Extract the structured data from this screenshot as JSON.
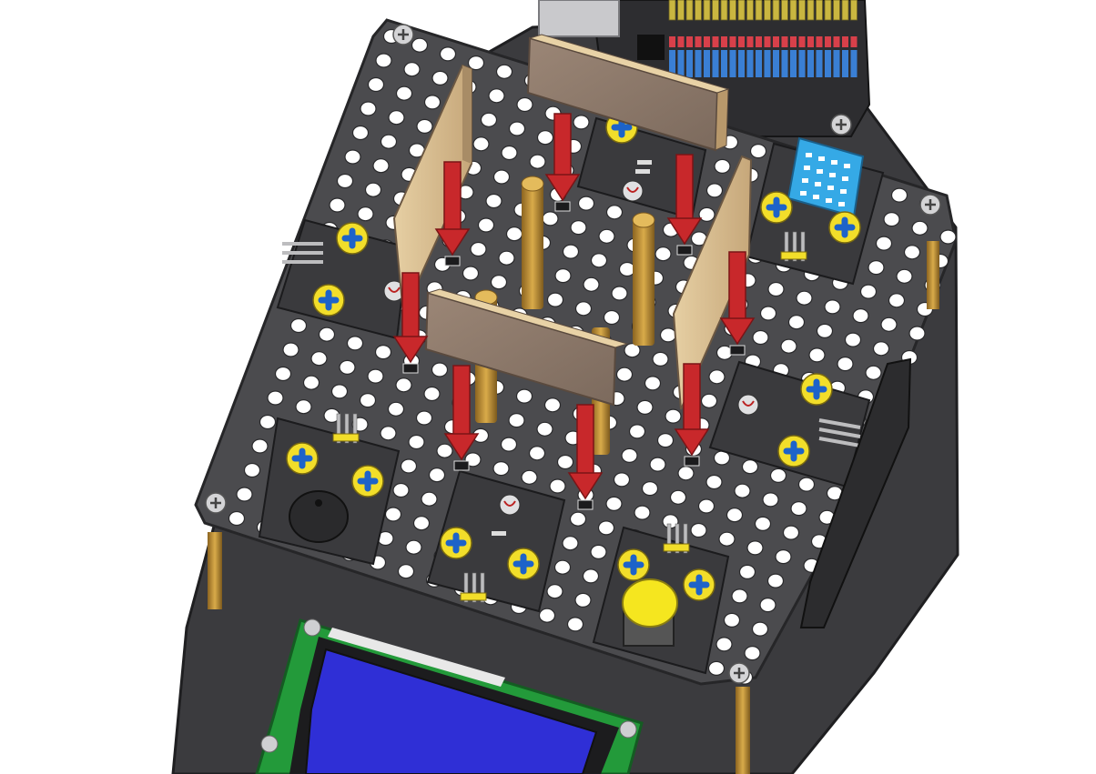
{
  "figure": {
    "kind": "exploded assembly illustration",
    "background": "#ffffff",
    "colors": {
      "plate": "#4a4a4d",
      "plate_edge": "#2a2a2c",
      "base_plate": "#3c3c3f",
      "hole": "#ffffff",
      "board": "#c7a982",
      "board_face": "#8e7a6a",
      "arrow": "#c8282b",
      "standoff": "#c89a3c",
      "screw_yellow": "#f2de2a",
      "screw_blue": "#1d63c9",
      "lcd_screen": "#2f2fd6",
      "lcd_pcb": "#239a3a",
      "humidity_sensor": "#35a9e6",
      "button_cap": "#f5e61f",
      "header_pins": "#c9b640"
    },
    "parts": [
      {
        "name": "top-mounting-plate"
      },
      {
        "name": "bottom-chassis-plate"
      },
      {
        "name": "controller-board-with-pin-headers"
      },
      {
        "name": "photoresistor-module",
        "count": 5
      },
      {
        "name": "buzzer-module"
      },
      {
        "name": "push-button-module"
      },
      {
        "name": "temperature-humidity-module"
      },
      {
        "name": "lcd-display-module"
      },
      {
        "name": "wooden-divider-board",
        "count": 4
      },
      {
        "name": "copper-standoff",
        "count": 4
      },
      {
        "name": "insert-direction-arrow",
        "count": 8
      }
    ]
  }
}
